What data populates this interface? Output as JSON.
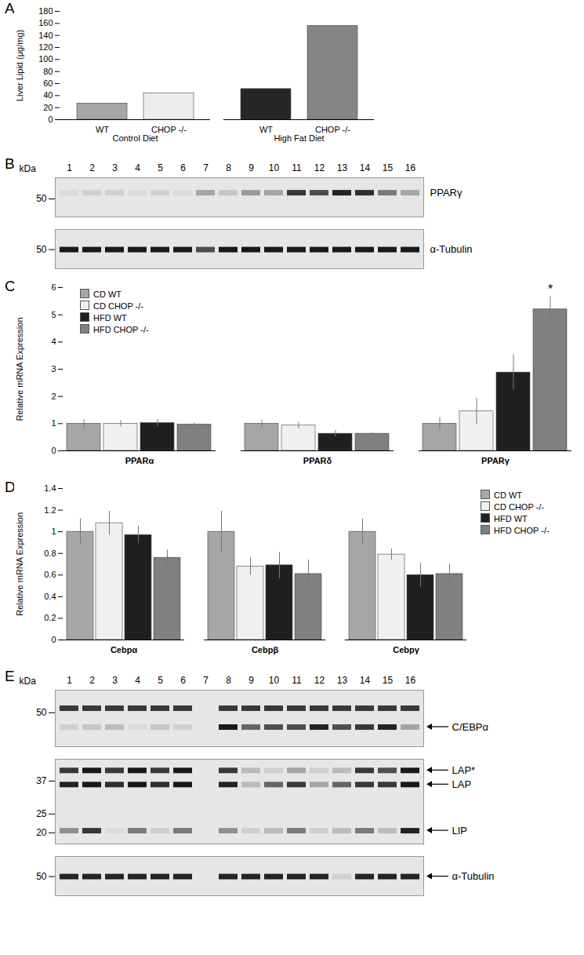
{
  "chart_data": [
    {
      "panel": "A",
      "type": "bar",
      "ylabel": "Liver Lipid (μg/mg)",
      "categories": [
        "WT",
        "CHOP -/-"
      ],
      "series": [
        {
          "name": "Control Diet",
          "colors": [
            "#a6a6a6",
            "#ededed"
          ],
          "values": [
            27,
            44
          ]
        },
        {
          "name": "High Fat Diet",
          "colors": [
            "#262626",
            "#858585"
          ],
          "values": [
            51,
            156
          ]
        }
      ],
      "ylim": [
        0,
        180
      ],
      "yticks": [
        0,
        20,
        40,
        60,
        80,
        100,
        120,
        140,
        160,
        180
      ]
    },
    {
      "panel": "B",
      "type": "blot",
      "log": "y",
      "lanes": [
        1,
        2,
        3,
        4,
        5,
        6,
        7,
        8,
        9,
        10,
        11,
        12,
        13,
        14,
        15,
        16
      ],
      "strips": [
        {
          "ylabel": "kDa",
          "ylim": [
            40,
            65
          ],
          "yticks": [
            50
          ],
          "bands": [
            {
              "name": "PPARγ",
              "kDa": 54,
              "intensity": [
                0.05,
                0.1,
                0.1,
                0.05,
                0.1,
                0.05,
                0.3,
                0.15,
                0.35,
                0.3,
                0.8,
                0.7,
                0.9,
                0.85,
                0.5,
                0.3
              ]
            }
          ]
        },
        {
          "ylim": [
            42,
            60
          ],
          "yticks": [
            50
          ],
          "tick_labels": "y",
          "bands": [
            {
              "name": "α-Tubulin",
              "kDa": 50,
              "intensity": [
                0.95,
                0.95,
                0.95,
                0.95,
                0.95,
                0.95,
                0.7,
                0.95,
                0.95,
                0.95,
                0.95,
                0.95,
                0.95,
                0.95,
                0.95,
                0.95
              ]
            }
          ]
        }
      ]
    },
    {
      "panel": "C",
      "type": "bar",
      "ylabel": "Relative mRNA Expression",
      "legend": "top-left",
      "categories": [
        "PPARα",
        "PPARδ",
        "PPARγ"
      ],
      "series": [
        {
          "name": "CD WT",
          "color": "#a6a6a6",
          "values": [
            1,
            1,
            1
          ],
          "errors": [
            0.15,
            0.13,
            0.22
          ]
        },
        {
          "name": "CD CHOP -/-",
          "color": "#f0f0f0",
          "values": [
            1,
            0.93,
            1.45
          ],
          "errors": [
            0.12,
            0.12,
            0.48
          ]
        },
        {
          "name": "HFD WT",
          "color": "#1f1f1f",
          "values": [
            1.02,
            0.63,
            2.88
          ],
          "errors": [
            0.13,
            0.12,
            0.65
          ]
        },
        {
          "name": "HFD CHOP -/-",
          "color": "#808080",
          "values": [
            0.97,
            0.63,
            5.2
          ],
          "errors": [
            0.05,
            0.04,
            0.48
          ]
        }
      ],
      "annotations": [
        {
          "text": "*",
          "category": "PPARγ",
          "series": "HFD CHOP -/-"
        }
      ],
      "ylim": [
        0,
        6
      ],
      "yticks": [
        0,
        1,
        2,
        3,
        4,
        5,
        6
      ]
    },
    {
      "panel": "D",
      "type": "bar",
      "ylabel": "Relative mRNA Expression",
      "legend": "top-right",
      "categories": [
        "Cebpα",
        "Cebpβ",
        "Cebpγ"
      ],
      "series": [
        {
          "name": "CD WT",
          "color": "#a6a6a6",
          "values": [
            1,
            1,
            1
          ],
          "errors": [
            0.12,
            0.19,
            0.12
          ]
        },
        {
          "name": "CD CHOP -/-",
          "color": "#f0f0f0",
          "values": [
            1.08,
            0.68,
            0.79
          ],
          "errors": [
            0.11,
            0.08,
            0.05
          ]
        },
        {
          "name": "HFD WT",
          "color": "#1f1f1f",
          "values": [
            0.97,
            0.69,
            0.6
          ],
          "errors": [
            0.08,
            0.12,
            0.11
          ]
        },
        {
          "name": "HFD CHOP -/-",
          "color": "#808080",
          "values": [
            0.76,
            0.61,
            0.61
          ],
          "errors": [
            0.07,
            0.13,
            0.09
          ]
        }
      ],
      "ylim": [
        0,
        1.4
      ],
      "yticks": [
        0,
        0.2,
        0.4,
        0.6,
        0.8,
        1,
        1.2,
        1.4
      ]
    },
    {
      "panel": "E",
      "type": "blot",
      "log": "y",
      "marker": "arrow",
      "lanes": [
        1,
        2,
        3,
        4,
        5,
        6,
        7,
        8,
        9,
        10,
        11,
        12,
        13,
        14,
        15,
        16
      ],
      "strips": [
        {
          "ylabel": "kDa",
          "ylim": [
            40,
            58
          ],
          "yticks": [
            50
          ],
          "bands": [
            {
              "name": null,
              "kDa": 51.5,
              "intensity": [
                0.8,
                0.8,
                0.8,
                0.8,
                0.8,
                0.8,
                0,
                0.8,
                0.8,
                0.8,
                0.8,
                0.8,
                0.8,
                0.8,
                0.8,
                0.8
              ]
            },
            {
              "name": "C/EBPα",
              "kDa": 45.5,
              "intensity": [
                0.1,
                0.15,
                0.2,
                0.05,
                0.15,
                0.1,
                0,
                0.95,
                0.6,
                0.7,
                0.7,
                0.9,
                0.7,
                0.8,
                0.9,
                0.3
              ]
            }
          ]
        },
        {
          "ylim": [
            17.5,
            48
          ],
          "yticks": [
            37,
            25,
            20
          ],
          "tick_labels": "y",
          "bands": [
            {
              "name": "LAP*",
              "kDa": 42,
              "intensity": [
                0.8,
                0.95,
                0.8,
                0.95,
                0.8,
                0.95,
                0,
                0.8,
                0.2,
                0.1,
                0.3,
                0.1,
                0.2,
                0.8,
                0.7,
                0.95
              ]
            },
            {
              "name": "LAP",
              "kDa": 35.5,
              "intensity": [
                0.9,
                0.95,
                0.85,
                0.95,
                0.85,
                0.95,
                0,
                0.9,
                0.2,
                0.6,
                0.8,
                0.3,
                0.6,
                0.8,
                0.8,
                0.95
              ]
            },
            {
              "name": "LIP",
              "kDa": 20.5,
              "intensity": [
                0.4,
                0.8,
                0.05,
                0.5,
                0.1,
                0.5,
                0,
                0.4,
                0.1,
                0.2,
                0.5,
                0.1,
                0.2,
                0.5,
                0.2,
                0.9
              ]
            }
          ]
        },
        {
          "ylim": [
            42,
            60
          ],
          "yticks": [
            50
          ],
          "tick_labels": "y",
          "bands": [
            {
              "name": "α-Tubulin",
              "kDa": 50,
              "intensity": [
                0.9,
                0.9,
                0.9,
                0.9,
                0.9,
                0.9,
                0,
                0.9,
                0.9,
                0.9,
                0.9,
                0.9,
                0.1,
                0.9,
                0.9,
                0.9
              ]
            }
          ]
        }
      ]
    }
  ]
}
